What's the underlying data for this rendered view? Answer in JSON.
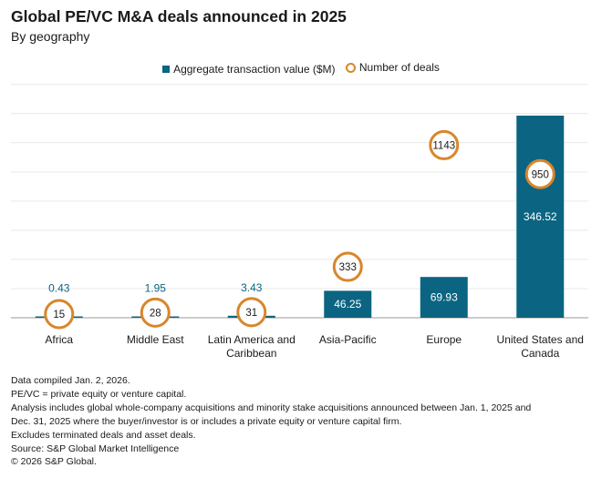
{
  "chart_data": {
    "type": "bar",
    "title": "Global PE/VC M&A deals announced in 2025",
    "subtitle": "By geography",
    "categories": [
      "Africa",
      "Middle East",
      "Latin America and Caribbean",
      "Asia-Pacific",
      "Europe",
      "United States and Canada"
    ],
    "category_lines": [
      [
        "Africa"
      ],
      [
        "Middle East"
      ],
      [
        "Latin America and",
        "Caribbean"
      ],
      [
        "Asia-Pacific"
      ],
      [
        "Europe"
      ],
      [
        "United States and",
        "Canada"
      ]
    ],
    "series": [
      {
        "name": "Aggregate transaction value ($M)",
        "values": [
          0.43,
          1.95,
          3.43,
          46.25,
          69.93,
          346.52
        ],
        "value_labels": [
          "0.43",
          "1.95",
          "3.43",
          "46.25",
          "69.93",
          "346.52"
        ],
        "color": "#0b6481",
        "type": "bar"
      },
      {
        "name": "Number of deals",
        "values": [
          15,
          28,
          31,
          333,
          1143,
          950
        ],
        "value_labels": [
          "15",
          "28",
          "31",
          "333",
          "1143",
          "950"
        ],
        "color": "#d8862b",
        "type": "circle-marker"
      }
    ],
    "xlabel": "",
    "ylabel": "",
    "ylim": [
      0,
      400
    ],
    "grid": true,
    "legend_position": "top-center"
  },
  "footnotes": [
    "Data compiled Jan. 2, 2026.",
    "PE/VC = private equity or venture capital.",
    "Analysis includes global whole-company acquisitions and minority stake acquisitions announced between Jan. 1, 2025 and",
    "Dec. 31, 2025 where the buyer/investor is or includes a private equity or venture capital firm.",
    "Excludes terminated deals and asset deals.",
    "Source: S&P Global Market Intelligence",
    "© 2026 S&P Global."
  ]
}
